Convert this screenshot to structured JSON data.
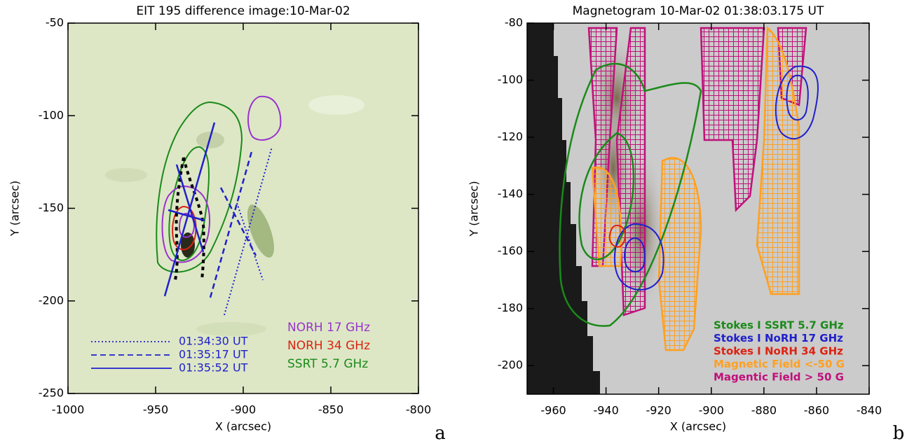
{
  "chart_data": [
    {
      "type": "image",
      "title": "EIT 195 difference image:10-Mar-02",
      "x_label": "X (arcsec)",
      "y_label": "Y (arcsec)",
      "xlim": [
        -1000,
        -800
      ],
      "xticks": [
        -1000,
        -950,
        -900,
        -850,
        -800
      ],
      "ylim": [
        -250,
        -50
      ],
      "yticks": [
        -250,
        -200,
        -150,
        -100,
        -50
      ],
      "line_legend": [
        {
          "label": "01:34:30 UT",
          "color": "#2020cc",
          "dash": "dotted"
        },
        {
          "label": "01:35:17 UT",
          "color": "#2020cc",
          "dash": "dashed"
        },
        {
          "label": "01:35:52 UT",
          "color": "#2020cc",
          "dash": "solid"
        }
      ],
      "contour_legend": [
        {
          "label": "NORH 17 GHz",
          "color": "#9933cc"
        },
        {
          "label": "NORH 34 GHz",
          "color": "#dd2211"
        },
        {
          "label": "SSRT 5.7 GHz",
          "color": "#1a8a1a"
        }
      ],
      "panel_label": "a"
    },
    {
      "type": "image",
      "title": "Magnetogram 10-Mar-02 01:38:03.175 UT",
      "x_label": "X (arcsec)",
      "y_label": "Y (arcsec)",
      "xlim": [
        -970,
        -840
      ],
      "xticks": [
        -960,
        -940,
        -920,
        -900,
        -880,
        -860,
        -840
      ],
      "ylim": [
        -210,
        -80
      ],
      "yticks": [
        -200,
        -180,
        -160,
        -140,
        -120,
        -100,
        -80
      ],
      "legend": [
        {
          "label": "Stokes I SSRT 5.7 GHz",
          "color": "#1a8a1a"
        },
        {
          "label": "Stokes I NoRH 17 GHz",
          "color": "#2020cc"
        },
        {
          "label": "Stokes I NoRH 34 GHz",
          "color": "#dd2211"
        },
        {
          "label": "Magnetic Field <-50 G",
          "color": "#ffa020"
        },
        {
          "label": "Magentic Field > 50 G",
          "color": "#c0107a"
        }
      ],
      "panel_label": "b"
    }
  ]
}
